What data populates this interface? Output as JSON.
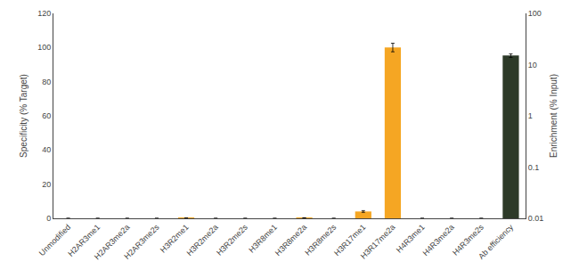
{
  "chart_data": {
    "type": "bar",
    "categories": [
      "Unmodified",
      "H2AR3me1",
      "H2AR3me2a",
      "H2AR3me2s",
      "H3R2me1",
      "H3R2me2a",
      "H3R2me2s",
      "H3R8me1",
      "H3R8me2a",
      "H3R8me2s",
      "H3R17me1",
      "H3R17me2a",
      "H4R3me1",
      "H4R3me2a",
      "H4R3me2s",
      "Ab efficiency"
    ],
    "series": [
      {
        "color": "#F5A623",
        "values": [
          0.0,
          0.0,
          0.0,
          0.0,
          0.15,
          0.0,
          0.0,
          0.0,
          0.3,
          0.0,
          4.0,
          100.0,
          0.0,
          0.0,
          0.0,
          null
        ],
        "errors": [
          0.0,
          0.0,
          0.0,
          0.0,
          0.0,
          0.0,
          0.0,
          0.0,
          0.0,
          0.0,
          0.5,
          2.5,
          0.0,
          0.0,
          0.0,
          null
        ]
      },
      {
        "color": "#2D3A28",
        "axis": "y2",
        "values": [
          null,
          null,
          null,
          null,
          null,
          null,
          null,
          null,
          null,
          null,
          null,
          null,
          null,
          null,
          null,
          15.0
        ],
        "errors": [
          null,
          null,
          null,
          null,
          null,
          null,
          null,
          null,
          null,
          null,
          null,
          null,
          null,
          null,
          null,
          1.2
        ]
      }
    ],
    "ylabel": "Specificity (% Target)",
    "y2label": "Enrichment (% Input)",
    "ylim": [
      0,
      120
    ],
    "yticks": [
      0,
      20,
      40,
      60,
      80,
      100,
      120
    ],
    "y2lim": [
      0.01,
      100
    ],
    "y2ticks": [
      0.01,
      0.1,
      1,
      10,
      100
    ],
    "log": "y2",
    "grid": false
  }
}
